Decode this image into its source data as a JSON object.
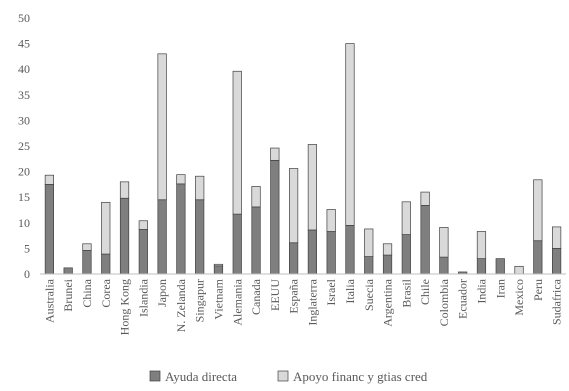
{
  "chart_data": {
    "type": "bar",
    "stacked": true,
    "title": "",
    "xlabel": "",
    "ylabel": "",
    "ylim": [
      0,
      50
    ],
    "yticks": [
      0,
      5,
      10,
      15,
      20,
      25,
      30,
      35,
      40,
      45,
      50
    ],
    "grid": false,
    "legend_position": "bottom",
    "categories": [
      "Australia",
      "Brunei",
      "China",
      "Corea",
      "Hong Kong",
      "Islandia",
      "Japon",
      "N. Zelanda",
      "Singapur",
      "Vietnam",
      "Alemania",
      "Canada",
      "EEUU",
      "España",
      "Inglaterra",
      "Israel",
      "Italia",
      "Suecia",
      "Argentina",
      "Brasil",
      "Chile",
      "Colombia",
      "Ecuador",
      "India",
      "Iran",
      "Mexico",
      "Peru",
      "Sudafrica"
    ],
    "series": [
      {
        "name": "Ayuda directa",
        "color": "#7f7f7f",
        "values": [
          17.5,
          1.2,
          4.6,
          3.9,
          14.8,
          8.7,
          14.5,
          17.6,
          14.5,
          1.6,
          11.7,
          13.1,
          22.2,
          6.1,
          8.6,
          8.3,
          9.5,
          3.4,
          3.7,
          7.7,
          13.4,
          3.3,
          0.4,
          3.0,
          3.0,
          0.0,
          6.5,
          5.0
        ]
      },
      {
        "name": "Apoyo financ y gtias cred",
        "color": "#d9d9d9",
        "values": [
          1.8,
          0.0,
          1.3,
          10.1,
          3.2,
          1.7,
          28.5,
          1.8,
          4.6,
          0.3,
          27.9,
          4.0,
          2.4,
          14.5,
          16.7,
          4.3,
          35.5,
          5.4,
          2.2,
          6.4,
          2.6,
          5.8,
          0.0,
          5.3,
          0.0,
          1.5,
          11.9,
          4.2
        ]
      }
    ]
  }
}
